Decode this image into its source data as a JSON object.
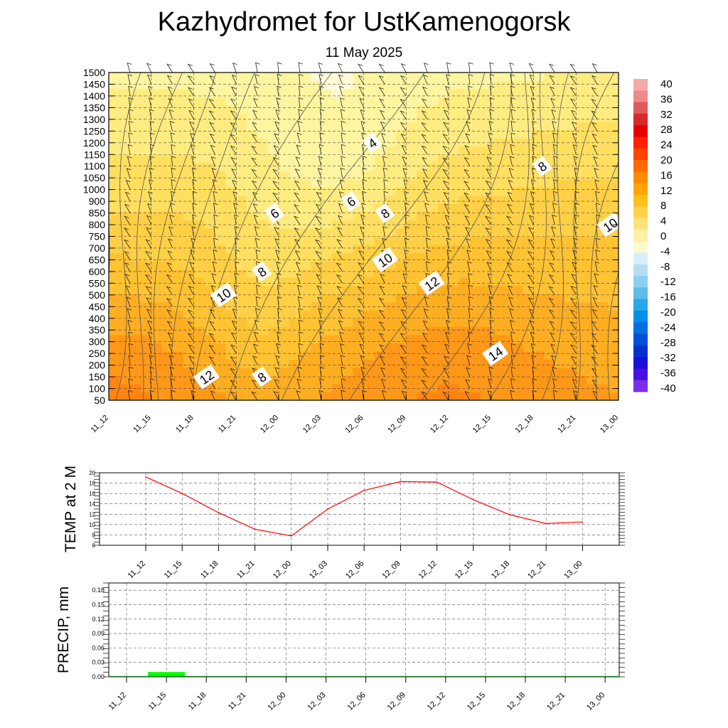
{
  "header": {
    "title": "Kazhydromet  for UstKamenogorsk",
    "date": "11 May 2025"
  },
  "chart_data": [
    {
      "type": "heatmap",
      "name": "vertical-cross-section",
      "x_labels": [
        "11_12",
        "11_15",
        "11_18",
        "11_21",
        "12_00",
        "12_03",
        "12_06",
        "12_09",
        "12_12",
        "12_15",
        "12_18",
        "12_21",
        "13_00"
      ],
      "y_levels": [
        50,
        100,
        150,
        200,
        250,
        300,
        350,
        400,
        450,
        500,
        550,
        600,
        650,
        700,
        750,
        800,
        850,
        900,
        1000,
        1050,
        1100,
        1150,
        1200,
        1250,
        1300,
        1350,
        1400,
        1450,
        1500
      ],
      "colorbar_labels": [
        "40",
        "36",
        "32",
        "28",
        "24",
        "20",
        "16",
        "12",
        "8",
        "4",
        "0",
        "-4",
        "-8",
        "-12",
        "-16",
        "-20",
        "-24",
        "-28",
        "-32",
        "-36",
        "-40"
      ],
      "colorbar_colors": [
        "#f5a9a9",
        "#ee8a8a",
        "#e05a5a",
        "#d42a2a",
        "#e60000",
        "#ff2000",
        "#ff4500",
        "#ff6a00",
        "#ff8a00",
        "#ffa600",
        "#ffbe1a",
        "#ffd24a",
        "#ffe27a",
        "#fff0a8",
        "#fff9cc",
        "#daeefa",
        "#b5def5",
        "#8ccff0",
        "#5cbde8",
        "#2aa7e6",
        "#0090e8",
        "#0070e0",
        "#0050d8",
        "#0030d0",
        "#1a10d8",
        "#4a10e0",
        "#7a30e8"
      ],
      "contour_labels": [
        {
          "text": "4",
          "x": 6.2,
          "y": 1200
        },
        {
          "text": "6",
          "x": 3.9,
          "y": 850
        },
        {
          "text": "6",
          "x": 5.7,
          "y": 900
        },
        {
          "text": "8",
          "x": 6.5,
          "y": 850
        },
        {
          "text": "8",
          "x": 10.2,
          "y": 1100
        },
        {
          "text": "8",
          "x": 3.6,
          "y": 600
        },
        {
          "text": "8",
          "x": 3.6,
          "y": 150
        },
        {
          "text": "10",
          "x": 2.7,
          "y": 500
        },
        {
          "text": "10",
          "x": 6.5,
          "y": 650
        },
        {
          "text": "10",
          "x": 11.8,
          "y": 800
        },
        {
          "text": "12",
          "x": 7.6,
          "y": 550
        },
        {
          "text": "12",
          "x": 2.3,
          "y": 150
        },
        {
          "text": "14",
          "x": 9.1,
          "y": 250
        }
      ]
    },
    {
      "type": "line",
      "name": "temp-2m",
      "ylabel": "TEMP at 2 M",
      "x_labels": [
        "11_12",
        "11_15",
        "11_18",
        "11_21",
        "12_00",
        "12_03",
        "12_06",
        "12_09",
        "12_12",
        "12_15",
        "12_18",
        "12_21",
        "13_00"
      ],
      "values": [
        19.2,
        16.0,
        12.3,
        9.1,
        7.8,
        13.0,
        16.6,
        18.3,
        18.2,
        14.8,
        11.9,
        10.2,
        10.5
      ],
      "ylim": [
        6,
        20
      ],
      "yticks": [
        "6",
        "8",
        "10",
        "12",
        "14",
        "16",
        "18",
        "20"
      ],
      "color": "#ff0000"
    },
    {
      "type": "bar",
      "name": "precip",
      "ylabel": "PRECIP, mm",
      "x_labels": [
        "11_12",
        "11_15",
        "11_18",
        "11_21",
        "12_00",
        "12_03",
        "12_06",
        "12_09",
        "12_12",
        "12_15",
        "12_18",
        "12_21",
        "13_00"
      ],
      "values": [
        0,
        0.01,
        0,
        0,
        0,
        0,
        0,
        0,
        0,
        0,
        0,
        0,
        0
      ],
      "ylim": [
        0,
        0.195
      ],
      "yticks": [
        "0.00",
        "0.03",
        "0.06",
        "0.09",
        "0.12",
        "0.15",
        "0.18"
      ],
      "color": "#00ff00"
    }
  ]
}
